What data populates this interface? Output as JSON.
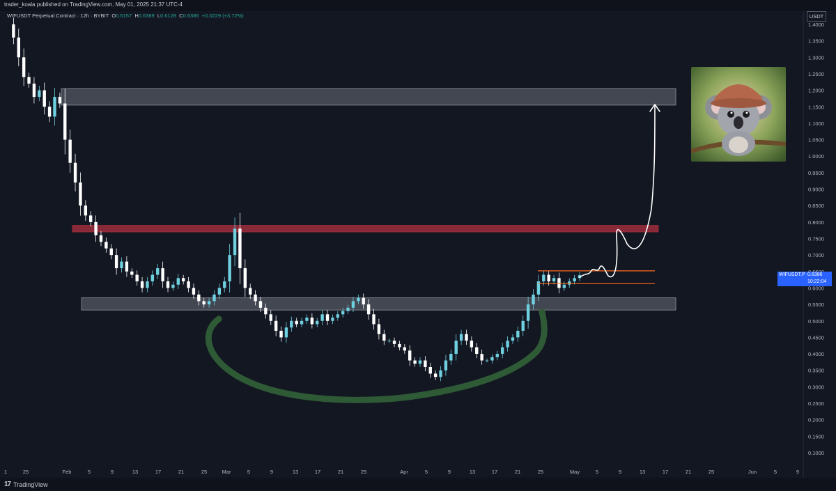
{
  "publisher": "trader_koala published on TradingView.com, May 01, 2025 21:37 UTC-4",
  "symbol_line": {
    "title": "WIFUSDT Perpetual Contract · 12h · BYBIT",
    "o_label": "O",
    "o_value": "0.6157",
    "h_label": "H",
    "h_value": "0.6389",
    "l_label": "L",
    "l_value": "0.6128",
    "c_label": "C",
    "c_value": "0.6386",
    "change": "+0.0229 (+3.72%)"
  },
  "axis_currency": "USDT",
  "last_price": {
    "symbol": "WIFUSDT.P",
    "price": "0.6386",
    "countdown": "10:22:04"
  },
  "branding": {
    "logo_mark": "17",
    "logo_text": "TradingView"
  },
  "colors": {
    "background": "#131722",
    "up": "#6fd0e0",
    "down": "#ffffff",
    "resistance_zone": "#b03040",
    "support_zone": "#9aa0aa",
    "cup_curve": "#2e5a35",
    "range_lines": "#ff6d1f",
    "projection": "#ffffff",
    "price_tag": "#2962ff"
  },
  "chart_data": {
    "type": "candlestick",
    "title": "WIFUSDT Perpetual Contract · 12h · BYBIT",
    "y_ticks": [
      "1.4000",
      "1.3500",
      "1.3000",
      "1.2500",
      "1.2000",
      "1.1500",
      "1.1000",
      "1.0500",
      "1.0000",
      "0.9500",
      "0.9000",
      "0.8500",
      "0.8000",
      "0.7500",
      "0.7000",
      "0.6500",
      "0.6000",
      "0.5500",
      "0.5000",
      "0.4500",
      "0.4000",
      "0.3500",
      "0.3000",
      "0.2500",
      "0.2000",
      "0.1500",
      "0.1000"
    ],
    "ylim": [
      0.04,
      1.44
    ],
    "x_ticks": [
      "1",
      "25",
      "Feb",
      "5",
      "9",
      "13",
      "17",
      "21",
      "25",
      "Mar",
      "5",
      "9",
      "13",
      "17",
      "21",
      "25",
      "Apr",
      "5",
      "9",
      "13",
      "17",
      "21",
      "25",
      "May",
      "5",
      "9",
      "13",
      "17",
      "21",
      "25",
      "Jun",
      "5",
      "9"
    ],
    "zones": [
      {
        "name": "upper-target-zone",
        "from": 1.155,
        "to": 1.205
      },
      {
        "name": "resistance-zone",
        "from": 0.77,
        "to": 0.79
      },
      {
        "name": "support-zone",
        "from": 0.533,
        "to": 0.57
      }
    ],
    "range_lines": [
      0.652,
      0.613
    ],
    "close_points": [
      1.4,
      1.36,
      1.3,
      1.24,
      1.22,
      1.18,
      1.2,
      1.15,
      1.12,
      1.18,
      1.16,
      1.05,
      0.98,
      0.92,
      0.85,
      0.82,
      0.8,
      0.76,
      0.74,
      0.72,
      0.7,
      0.66,
      0.68,
      0.65,
      0.64,
      0.62,
      0.6,
      0.62,
      0.64,
      0.66,
      0.62,
      0.6,
      0.61,
      0.63,
      0.62,
      0.6,
      0.58,
      0.56,
      0.55,
      0.56,
      0.58,
      0.6,
      0.62,
      0.7,
      0.78,
      0.66,
      0.6,
      0.58,
      0.56,
      0.54,
      0.52,
      0.5,
      0.47,
      0.45,
      0.48,
      0.5,
      0.49,
      0.5,
      0.51,
      0.49,
      0.5,
      0.52,
      0.5,
      0.51,
      0.52,
      0.53,
      0.54,
      0.56,
      0.57,
      0.55,
      0.52,
      0.49,
      0.46,
      0.44,
      0.44,
      0.43,
      0.42,
      0.41,
      0.38,
      0.37,
      0.38,
      0.36,
      0.34,
      0.33,
      0.35,
      0.38,
      0.4,
      0.44,
      0.46,
      0.44,
      0.42,
      0.4,
      0.38,
      0.38,
      0.39,
      0.4,
      0.42,
      0.44,
      0.45,
      0.47,
      0.5,
      0.55,
      0.58,
      0.62,
      0.64,
      0.62,
      0.63,
      0.6,
      0.61,
      0.62,
      0.63,
      0.6386
    ]
  }
}
